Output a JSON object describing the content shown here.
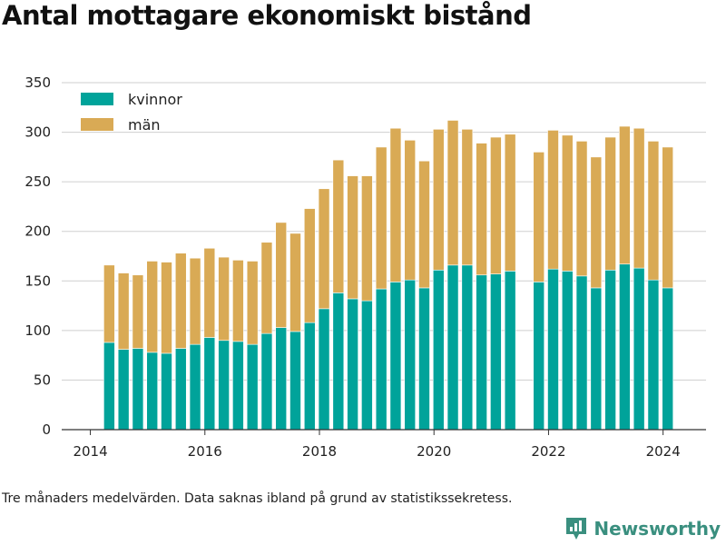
{
  "title": "Antal mottagare ekonomiskt bistånd",
  "footnote": "Tre månaders medelvärden. Data saknas ibland på grund av statistikssekretess.",
  "brand": "Newsworthy",
  "colors": {
    "kvinnor": "#00a39a",
    "man": "#d9aa55",
    "grid": "#cfcfcf",
    "axis": "#333333"
  },
  "chart_data": {
    "type": "bar",
    "stacked": true,
    "legend": "top-left",
    "grid": "horizontal",
    "ylim": [
      0,
      350
    ],
    "yticks": [
      0,
      50,
      100,
      150,
      200,
      250,
      300,
      350
    ],
    "xticks": [
      "2014",
      "2016",
      "2018",
      "2020",
      "2022",
      "2024"
    ],
    "xlim": [
      2013.5,
      2024.75
    ],
    "x": [
      2014.33,
      2014.58,
      2014.83,
      2015.08,
      2015.33,
      2015.58,
      2015.83,
      2016.08,
      2016.33,
      2016.58,
      2016.83,
      2017.08,
      2017.33,
      2017.58,
      2017.83,
      2018.08,
      2018.33,
      2018.58,
      2018.83,
      2019.08,
      2019.33,
      2019.58,
      2019.83,
      2020.08,
      2020.33,
      2020.58,
      2020.83,
      2021.08,
      2021.33,
      2021.83,
      2022.08,
      2022.33,
      2022.58,
      2022.83,
      2023.08,
      2023.33,
      2023.58,
      2023.83,
      2024.08
    ],
    "series": [
      {
        "name": "kvinnor",
        "values": [
          88,
          81,
          82,
          78,
          77,
          82,
          86,
          93,
          90,
          89,
          86,
          97,
          103,
          99,
          108,
          122,
          138,
          132,
          130,
          142,
          149,
          151,
          143,
          161,
          166,
          166,
          156,
          157,
          160,
          149,
          162,
          160,
          155,
          143,
          161,
          167,
          163,
          151,
          143
        ]
      },
      {
        "name": "män",
        "values": [
          78,
          77,
          74,
          92,
          92,
          96,
          87,
          90,
          84,
          82,
          84,
          92,
          106,
          99,
          115,
          121,
          134,
          124,
          126,
          143,
          155,
          141,
          128,
          142,
          146,
          137,
          133,
          138,
          138,
          131,
          140,
          137,
          136,
          132,
          134,
          139,
          141,
          140,
          142
        ]
      }
    ]
  }
}
